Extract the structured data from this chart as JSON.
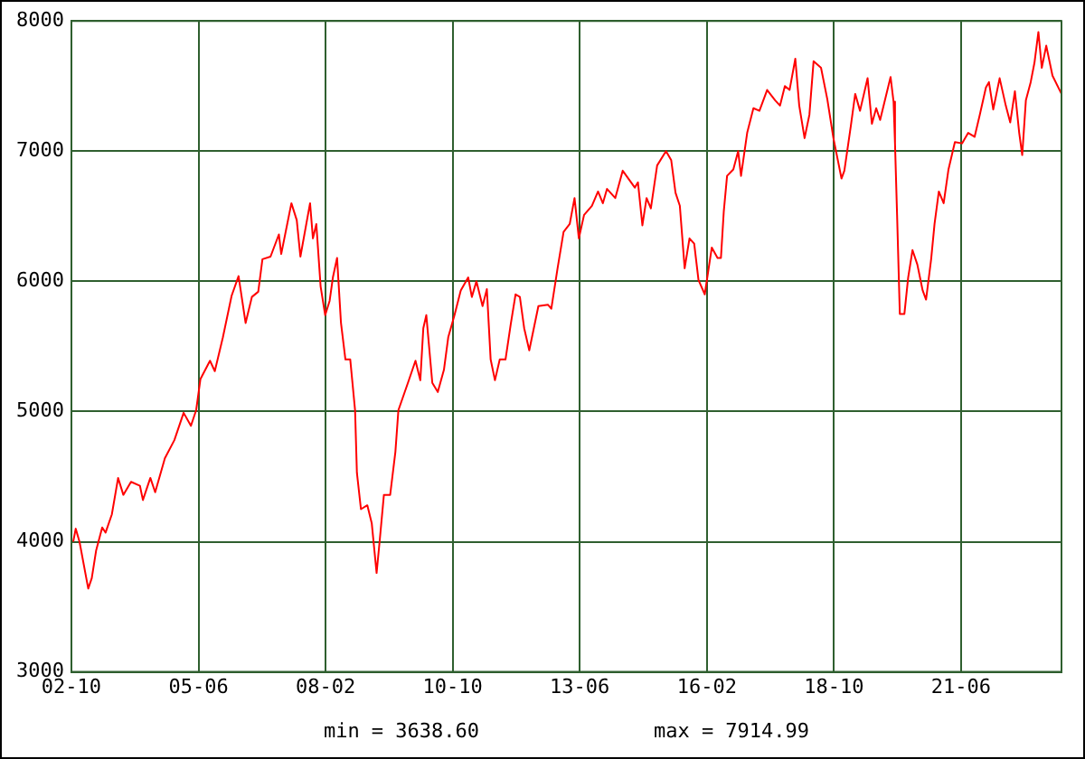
{
  "chart_data": {
    "type": "line",
    "annotations": [
      "min = 3638.60",
      "max = 7914.99"
    ],
    "x": [
      "2002-10-15",
      "2002-11-03",
      "2002-12-02",
      "2003-02-07",
      "2003-03-06",
      "2003-04-08",
      "2003-05-25",
      "2003-06-20",
      "2003-08-07",
      "2003-09-24",
      "2003-11-03",
      "2004-01-01",
      "2004-03-09",
      "2004-04-01",
      "2004-05-28",
      "2004-07-04",
      "2004-09-16",
      "2004-11-28",
      "2005-02-07",
      "2005-04-04",
      "2005-05-14",
      "2005-06-16",
      "2005-08-28",
      "2005-10-04",
      "2005-12-05",
      "2006-02-10",
      "2006-04-04",
      "2006-05-28",
      "2006-07-15",
      "2006-09-02",
      "2006-10-04",
      "2006-12-05",
      "2007-02-07",
      "2007-02-25",
      "2007-05-14",
      "2007-06-24",
      "2007-07-22",
      "2007-10-04",
      "2007-10-26",
      "2007-11-21",
      "2007-12-24",
      "2008-01-28",
      "2008-03-02",
      "2008-03-27",
      "2008-04-28",
      "2008-05-28",
      "2008-07-01",
      "2008-08-07",
      "2008-09-13",
      "2008-09-27",
      "2008-10-28",
      "2008-12-16",
      "2009-01-19",
      "2009-02-25",
      "2009-03-20",
      "2009-04-22",
      "2009-06-09",
      "2009-07-19",
      "2009-08-11",
      "2009-10-23",
      "2009-12-20",
      "2010-01-26",
      "2010-02-18",
      "2010-03-13",
      "2010-04-28",
      "2010-06-09",
      "2010-07-26",
      "2010-08-28",
      "2010-10-15",
      "2010-12-02",
      "2011-01-28",
      "2011-02-25",
      "2011-04-01",
      "2011-05-18",
      "2011-06-20",
      "2011-07-19",
      "2011-08-21",
      "2011-09-27",
      "2011-11-10",
      "2011-12-20",
      "2012-01-26",
      "2012-02-28",
      "2012-04-01",
      "2012-05-10",
      "2012-07-19",
      "2012-10-01",
      "2012-10-26",
      "2012-12-13",
      "2013-01-28",
      "2013-03-16",
      "2013-04-22",
      "2013-05-25",
      "2013-07-04",
      "2013-09-02",
      "2013-10-19",
      "2013-11-25",
      "2013-12-27",
      "2014-02-28",
      "2014-04-26",
      "2014-07-28",
      "2014-08-21",
      "2014-09-24",
      "2014-10-26",
      "2014-11-28",
      "2015-01-15",
      "2015-03-24",
      "2015-05-03",
      "2015-06-05",
      "2015-07-08",
      "2015-08-14",
      "2015-09-20",
      "2015-10-26",
      "2015-11-28",
      "2016-01-15",
      "2016-02-14",
      "2016-03-09",
      "2016-04-22",
      "2016-05-18",
      "2016-06-09",
      "2016-07-04",
      "2016-08-21",
      "2016-09-27",
      "2016-10-19",
      "2016-12-05",
      "2017-01-22",
      "2017-03-09",
      "2017-05-07",
      "2017-07-08",
      "2017-08-14",
      "2017-09-20",
      "2017-10-26",
      "2017-12-09",
      "2018-01-08",
      "2018-02-18",
      "2018-03-27",
      "2018-04-28",
      "2018-06-24",
      "2018-08-11",
      "2018-09-27",
      "2018-11-28",
      "2018-12-20",
      "2019-02-07",
      "2019-03-13",
      "2019-04-19",
      "2019-06-16",
      "2019-07-19",
      "2019-08-21",
      "2019-09-20",
      "2019-12-09",
      "2020-01-01",
      "2020-01-12",
      "2020-01-28",
      "2020-02-18",
      "2020-03-24",
      "2020-04-22",
      "2020-05-25",
      "2020-07-01",
      "2020-08-11",
      "2020-09-06",
      "2020-10-15",
      "2020-11-10",
      "2020-12-13",
      "2021-01-19",
      "2021-02-25",
      "2021-04-15",
      "2021-06-09",
      "2021-07-26",
      "2021-09-13",
      "2021-10-23",
      "2021-12-09",
      "2022-01-01",
      "2022-02-03",
      "2022-03-24",
      "2022-05-10",
      "2022-06-13",
      "2022-07-19",
      "2022-08-21",
      "2022-09-13",
      "2022-10-11",
      "2022-11-17",
      "2022-12-16",
      "2023-01-15",
      "2023-02-10",
      "2023-03-16",
      "2023-05-03",
      "2023-07-11"
    ],
    "series": [
      {
        "color": "#ff0000",
        "values": [
          4000,
          4100,
          4000,
          3640,
          3720,
          3930,
          4110,
          4070,
          4210,
          4490,
          4360,
          4460,
          4430,
          4320,
          4490,
          4380,
          4640,
          4780,
          4990,
          4890,
          5010,
          5250,
          5390,
          5310,
          5570,
          5890,
          6040,
          5680,
          5880,
          5920,
          6170,
          6190,
          6360,
          6210,
          6600,
          6470,
          6190,
          6600,
          6330,
          6440,
          5960,
          5740,
          5850,
          6030,
          6180,
          5680,
          5400,
          5400,
          5010,
          4530,
          4250,
          4280,
          4140,
          3760,
          4000,
          4360,
          4360,
          4690,
          5010,
          5220,
          5390,
          5240,
          5640,
          5740,
          5220,
          5150,
          5320,
          5570,
          5740,
          5930,
          6030,
          5880,
          6000,
          5810,
          5940,
          5400,
          5240,
          5400,
          5400,
          5670,
          5900,
          5880,
          5640,
          5470,
          5810,
          5820,
          5790,
          6100,
          6380,
          6440,
          6640,
          6330,
          6510,
          6580,
          6690,
          6600,
          6710,
          6640,
          6850,
          6720,
          6760,
          6430,
          6640,
          6560,
          6890,
          7000,
          6930,
          6680,
          6580,
          6100,
          6330,
          6290,
          6010,
          5900,
          6100,
          6260,
          6180,
          6180,
          6540,
          6810,
          6860,
          7000,
          6810,
          7140,
          7330,
          7310,
          7470,
          7390,
          7350,
          7500,
          7470,
          7710,
          7350,
          7100,
          7280,
          7690,
          7640,
          7400,
          7100,
          6790,
          6850,
          7190,
          7440,
          7310,
          7560,
          7210,
          7330,
          7240,
          7570,
          7380,
          7060,
          6510,
          5750,
          5750,
          6030,
          6240,
          6130,
          5930,
          5860,
          6170,
          6440,
          6690,
          6600,
          6860,
          7070,
          7060,
          7140,
          7110,
          7280,
          7490,
          7530,
          7320,
          7560,
          7350,
          7220,
          7460,
          7140,
          6970,
          7390,
          7530,
          7680,
          7915,
          7640,
          7810,
          7580,
          7440
        ]
      }
    ],
    "xlim": [
      "2002-10-01",
      "2023-07-11"
    ],
    "xticks": [
      {
        "value": "2002-10",
        "label": "02-10"
      },
      {
        "value": "2005-06",
        "label": "05-06"
      },
      {
        "value": "2008-02",
        "label": "08-02"
      },
      {
        "value": "2010-10",
        "label": "10-10"
      },
      {
        "value": "2013-06",
        "label": "13-06"
      },
      {
        "value": "2016-02",
        "label": "16-02"
      },
      {
        "value": "2018-10",
        "label": "18-10"
      },
      {
        "value": "2021-06",
        "label": "21-06"
      }
    ],
    "ylim": [
      3000,
      8000
    ],
    "yticks": [
      3000,
      4000,
      5000,
      6000,
      7000,
      8000
    ],
    "grid": true,
    "legend": false,
    "marker": "none",
    "line_style": "solid"
  }
}
